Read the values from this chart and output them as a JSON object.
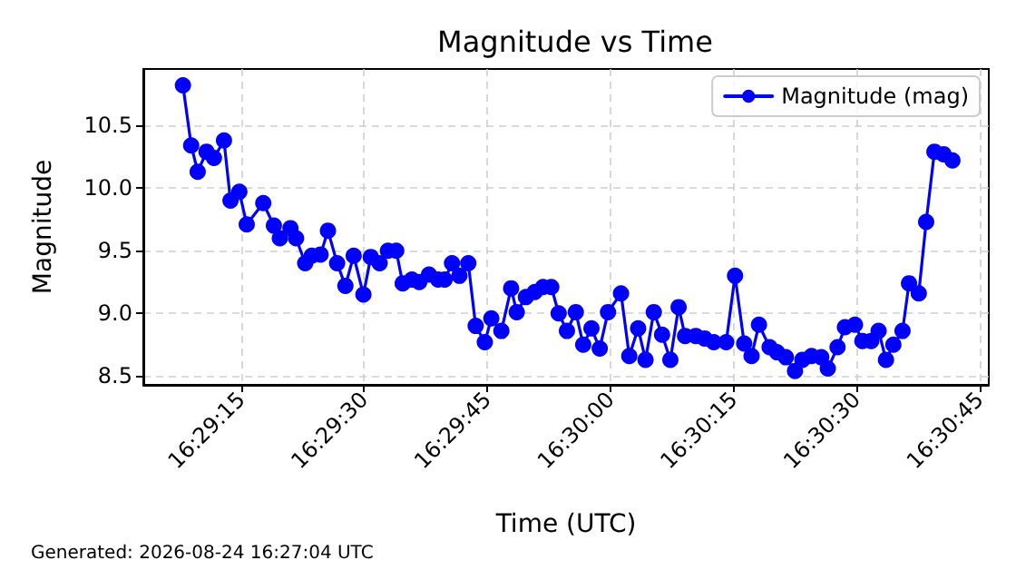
{
  "chart_data": {
    "type": "line",
    "title": "Magnitude vs Time",
    "xlabel": "Time (UTC)",
    "ylabel": "Magnitude",
    "annotations": [
      "Generated: 2026-08-24 16:27:04 UTC"
    ],
    "x": [
      16.48553,
      16.48581,
      16.48603,
      16.48633,
      16.48658,
      16.48692,
      16.48714,
      16.48744,
      16.48769,
      16.48825,
      16.48861,
      16.48881,
      16.48917,
      16.48936,
      16.48967,
      16.48989,
      16.49019,
      16.49044,
      16.49075,
      16.49103,
      16.49131,
      16.49164,
      16.49189,
      16.49219,
      16.49247,
      16.49275,
      16.49297,
      16.49328,
      16.49353,
      16.49386,
      16.49417,
      16.49439,
      16.49464,
      16.49489,
      16.49519,
      16.49544,
      16.49575,
      16.49597,
      16.49631,
      16.49664,
      16.49683,
      16.49714,
      16.49744,
      16.49772,
      16.498,
      16.49825,
      16.49853,
      16.49883,
      16.49908,
      16.49936,
      16.49964,
      16.49992,
      16.50036,
      16.50064,
      16.50094,
      16.50119,
      16.50147,
      16.50175,
      16.50203,
      16.50231,
      16.50253,
      16.50289,
      16.50319,
      16.5035,
      16.50392,
      16.50422,
      16.50453,
      16.50478,
      16.50503,
      16.50539,
      16.50564,
      16.50594,
      16.50625,
      16.5065,
      16.50681,
      16.50714,
      16.50736,
      16.50769,
      16.50794,
      16.50828,
      16.50853,
      16.50883,
      16.50908,
      16.50933,
      16.50958,
      16.50989,
      16.51011,
      16.51044,
      16.51069,
      16.51097,
      16.51128,
      16.51158
    ],
    "series": [
      {
        "name": "Magnitude (mag)",
        "color": "#0000ff",
        "values": [
          10.82,
          10.34,
          10.13,
          10.29,
          10.24,
          10.38,
          9.9,
          9.97,
          9.71,
          9.88,
          9.7,
          9.6,
          9.68,
          9.6,
          9.4,
          9.46,
          9.47,
          9.66,
          9.4,
          9.22,
          9.46,
          9.15,
          9.45,
          9.4,
          9.5,
          9.5,
          9.24,
          9.27,
          9.25,
          9.31,
          9.27,
          9.27,
          9.4,
          9.3,
          9.4,
          8.9,
          8.77,
          8.96,
          8.86,
          9.2,
          9.01,
          9.13,
          9.17,
          9.21,
          9.21,
          9.0,
          8.86,
          9.01,
          8.75,
          8.88,
          8.72,
          9.01,
          9.16,
          8.66,
          8.88,
          8.63,
          9.01,
          8.83,
          8.63,
          9.05,
          8.82,
          8.82,
          8.8,
          8.77,
          8.77,
          9.3,
          8.76,
          8.66,
          8.91,
          8.73,
          8.69,
          8.65,
          8.54,
          8.63,
          8.66,
          8.65,
          8.56,
          8.73,
          8.89,
          8.91,
          8.78,
          8.78,
          8.86,
          8.63,
          8.75,
          8.86,
          9.24,
          9.16,
          9.73,
          10.29,
          10.27,
          10.22
        ]
      }
    ],
    "xlim": [
      16.48419,
      16.51281
    ],
    "xticks": [
      {
        "value": 16.4875,
        "label": "16:29:15"
      },
      {
        "value": 16.491667,
        "label": "16:29:30"
      },
      {
        "value": 16.495833,
        "label": "16:29:45"
      },
      {
        "value": 16.5,
        "label": "16:30:00"
      },
      {
        "value": 16.504167,
        "label": "16:30:15"
      },
      {
        "value": 16.508333,
        "label": "16:30:30"
      },
      {
        "value": 16.5125,
        "label": "16:30:45"
      }
    ],
    "ylim": [
      8.43,
      10.95
    ],
    "yticks": [
      8.5,
      {
        "value": 9,
        "label": "9.0"
      },
      9.5,
      {
        "value": 10,
        "label": "10.0"
      },
      10.5
    ],
    "grid": true,
    "legend": "top right",
    "marker": "circle",
    "line_style": "solid"
  }
}
